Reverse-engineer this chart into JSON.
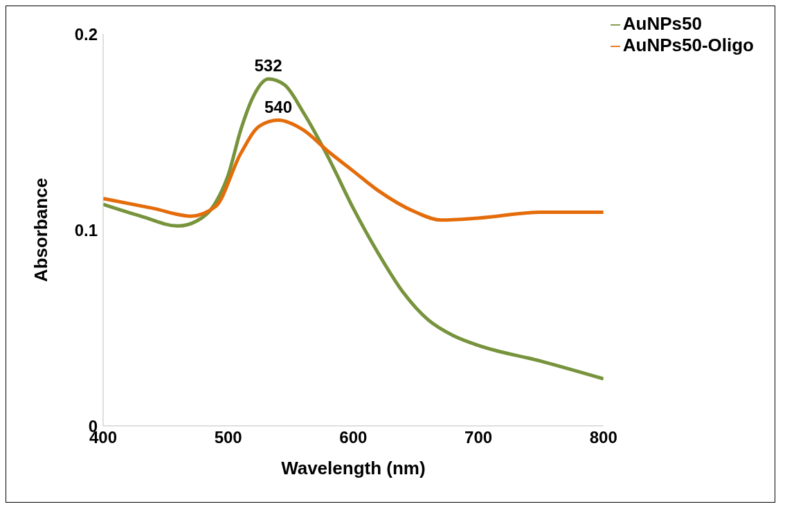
{
  "chart_data": {
    "type": "line",
    "xlabel": "Wavelength (nm)",
    "ylabel": "Absorbance",
    "xlim": [
      400,
      800
    ],
    "xticks": [
      400,
      500,
      600,
      700,
      800
    ],
    "ylim": [
      0,
      0.2
    ],
    "yticks": [
      0,
      0.1,
      0.2
    ],
    "grid": false,
    "legend": "top right",
    "marker": "none",
    "line_style": "solid",
    "annotations": [
      {
        "text": "532",
        "x": 532,
        "y": 0.178
      },
      {
        "text": "540",
        "x": 540,
        "y": 0.157
      }
    ],
    "series": [
      {
        "name": "AuNPs50",
        "color": "#77933c",
        "x": [
          400,
          430,
          460,
          475,
          490,
          500,
          510,
          520,
          532,
          545,
          560,
          580,
          600,
          620,
          640,
          660,
          680,
          700,
          750,
          800
        ],
        "values": [
          0.113,
          0.107,
          0.102,
          0.1046,
          0.114,
          0.128,
          0.151,
          0.168,
          0.177,
          0.174,
          0.16,
          0.137,
          0.111,
          0.088,
          0.068,
          0.054,
          0.046,
          0.041,
          0.033,
          0.024
        ]
      },
      {
        "name": "AuNPs50-Oligo",
        "color": "#e46c0a",
        "x": [
          400,
          440,
          470,
          490,
          510,
          525,
          540,
          560,
          580,
          600,
          620,
          650,
          670,
          700,
          750,
          800
        ],
        "values": [
          0.116,
          0.111,
          0.107,
          0.112,
          0.139,
          0.153,
          0.156,
          0.151,
          0.14,
          0.13,
          0.12,
          0.109,
          0.105,
          0.106,
          0.109,
          0.109
        ]
      }
    ]
  }
}
